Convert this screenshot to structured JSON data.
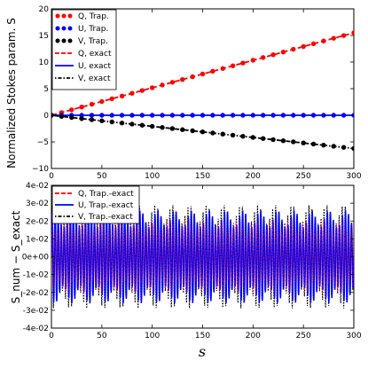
{
  "colors": {
    "Q": "#ff0000",
    "U": "#0000ff",
    "V": "#000000"
  },
  "chart_data": [
    {
      "type": "line",
      "ylabel": "Normalized Stokes param. S",
      "xlabel": "",
      "xlim": [
        0,
        300
      ],
      "ylim": [
        -10,
        20
      ],
      "xticks": [
        "0",
        "50",
        "100",
        "150",
        "200",
        "250",
        "300"
      ],
      "yticks": [
        "−10",
        "−5",
        "0",
        "5",
        "10",
        "15",
        "20"
      ],
      "legend_position": "top-left",
      "grid": false,
      "legend": [
        "Q, Trap.",
        "U, Trap.",
        "V, Trap.",
        "Q, exact",
        "U, exact",
        "V, exact"
      ],
      "series_markers": [
        {
          "name": "Q, Trap.",
          "x_start": 0,
          "x_step": 10,
          "count": 31,
          "slope": 0.0517,
          "intercept": 0
        },
        {
          "name": "U, Trap.",
          "x_start": 0,
          "x_step": 10,
          "count": 31,
          "slope": 0.0,
          "intercept": 0
        },
        {
          "name": "V, Trap.",
          "x_start": 0,
          "x_step": 10,
          "count": 31,
          "slope": -0.0208,
          "intercept": 0
        }
      ],
      "series_lines": [
        {
          "name": "Q, exact",
          "x": [
            0,
            300
          ],
          "y": [
            0,
            15.5
          ],
          "style": "dashed"
        },
        {
          "name": "U, exact",
          "x": [
            0,
            300
          ],
          "y": [
            0,
            0
          ],
          "style": "solid"
        },
        {
          "name": "V, exact",
          "x": [
            0,
            300
          ],
          "y": [
            0,
            -6.25
          ],
          "style": "dashdot"
        }
      ]
    },
    {
      "type": "line",
      "ylabel": "S_num − S_exact",
      "xlabel": "s",
      "xlim": [
        0,
        300
      ],
      "ylim": [
        -0.04,
        0.04
      ],
      "xticks": [
        "0",
        "50",
        "100",
        "150",
        "200",
        "250",
        "300"
      ],
      "yticks": [
        "-4e-02",
        "-3e-02",
        "-2e-02",
        "-1e-02",
        "0e+00",
        "1e-02",
        "2e-02",
        "3e-02",
        "4e-02"
      ],
      "legend_position": "top-left",
      "grid": false,
      "legend": [
        "Q, Trap.-exact",
        "U, Trap.-exact",
        "V, Trap.-exact"
      ],
      "oscillation": {
        "x_start": 0,
        "x_end": 300,
        "period": 3.0,
        "Q_amplitude": 0.021,
        "U_amplitude": 0.026,
        "V_amplitude": 0.029
      }
    }
  ]
}
